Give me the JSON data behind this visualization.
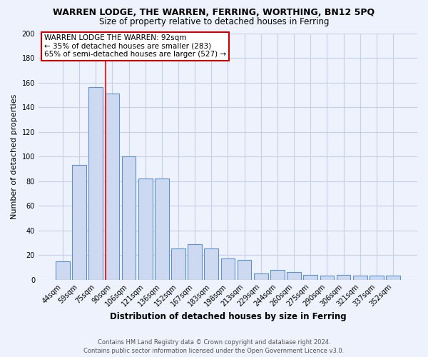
{
  "title": "WARREN LODGE, THE WARREN, FERRING, WORTHING, BN12 5PQ",
  "subtitle": "Size of property relative to detached houses in Ferring",
  "xlabel": "Distribution of detached houses by size in Ferring",
  "ylabel": "Number of detached properties",
  "bar_labels": [
    "44sqm",
    "59sqm",
    "75sqm",
    "90sqm",
    "106sqm",
    "121sqm",
    "136sqm",
    "152sqm",
    "167sqm",
    "183sqm",
    "198sqm",
    "213sqm",
    "229sqm",
    "244sqm",
    "260sqm",
    "275sqm",
    "290sqm",
    "306sqm",
    "321sqm",
    "337sqm",
    "352sqm"
  ],
  "bar_values": [
    15,
    93,
    156,
    151,
    100,
    82,
    82,
    25,
    29,
    25,
    17,
    16,
    5,
    8,
    6,
    4,
    3,
    4,
    3,
    3,
    3
  ],
  "bar_color": "#ccd9f0",
  "bar_edge_color": "#6090c8",
  "red_line_index": 3,
  "ylim": [
    0,
    200
  ],
  "yticks": [
    0,
    20,
    40,
    60,
    80,
    100,
    120,
    140,
    160,
    180,
    200
  ],
  "annotation_title": "WARREN LODGE THE WARREN: 92sqm",
  "annotation_line1": "← 35% of detached houses are smaller (283)",
  "annotation_line2": "65% of semi-detached houses are larger (527) →",
  "annotation_box_color": "#ffffff",
  "annotation_border_color": "#cc0000",
  "footer_line1": "Contains HM Land Registry data © Crown copyright and database right 2024.",
  "footer_line2": "Contains public sector information licensed under the Open Government Licence v3.0.",
  "background_color": "#edf2fc",
  "grid_color": "#c8d0e8",
  "title_fontsize": 9,
  "subtitle_fontsize": 8.5,
  "axis_label_fontsize": 8,
  "tick_fontsize": 7,
  "annotation_fontsize": 7.5,
  "footer_fontsize": 6
}
